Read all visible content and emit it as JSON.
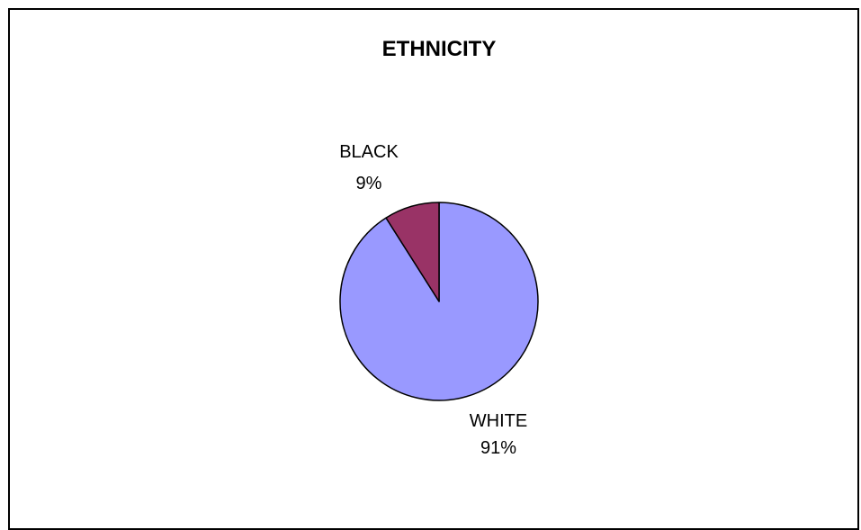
{
  "chart_data": {
    "type": "pie",
    "title": "ETHNICITY",
    "slices": [
      {
        "name": "WHITE",
        "value": 91,
        "label": "91%",
        "color": "#9999ff"
      },
      {
        "name": "BLACK",
        "value": 9,
        "label": "9%",
        "color": "#993366"
      }
    ],
    "start_angle_deg": 0,
    "direction": "clockwise",
    "legend": "none"
  }
}
